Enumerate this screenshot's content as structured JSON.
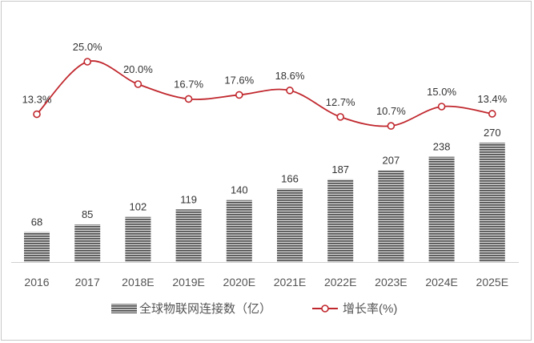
{
  "chart_data": {
    "type": "bar+line",
    "categories": [
      "2016",
      "2017",
      "2018E",
      "2019E",
      "2020E",
      "2021E",
      "2022E",
      "2023E",
      "2024E",
      "2025E"
    ],
    "series": [
      {
        "name": "全球物联网连接数（亿）",
        "type": "bar",
        "values": [
          68,
          85,
          102,
          119,
          140,
          166,
          187,
          207,
          238,
          270
        ],
        "labels": [
          "68",
          "85",
          "102",
          "119",
          "140",
          "166",
          "187",
          "207",
          "238",
          "270"
        ]
      },
      {
        "name": "增长率(%)",
        "type": "line",
        "values": [
          13.3,
          25.0,
          20.0,
          16.7,
          17.6,
          18.6,
          12.7,
          10.7,
          15.0,
          13.4
        ],
        "labels": [
          "13.3%",
          "25.0%",
          "20.0%",
          "16.7%",
          "17.6%",
          "18.6%",
          "12.7%",
          "10.7%",
          "15.0%",
          "13.4%"
        ]
      }
    ],
    "legend": "bottom",
    "grid": false,
    "colors": {
      "bar": "#555555",
      "line": "#c0272d"
    }
  }
}
